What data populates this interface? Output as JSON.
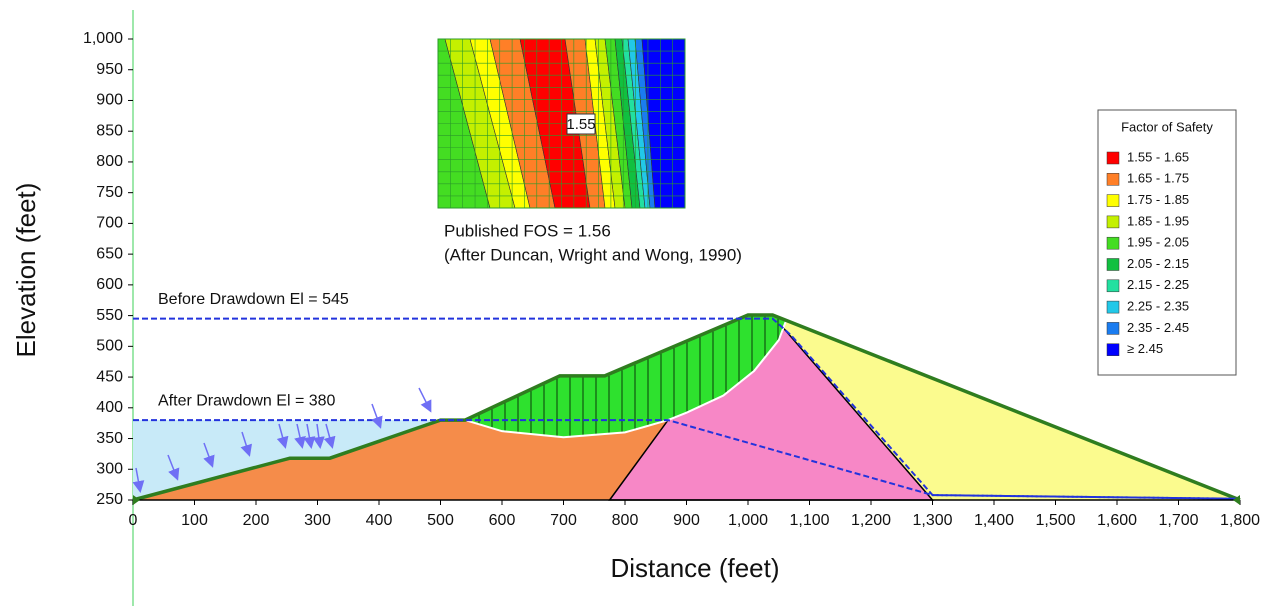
{
  "chart_data": {
    "type": "slope",
    "xlabel": "Distance (feet)",
    "ylabel": "Elevation (feet)",
    "xlim": [
      0,
      1800
    ],
    "ylim": [
      250,
      1000
    ],
    "xticks": [
      0,
      100,
      200,
      300,
      400,
      500,
      600,
      700,
      800,
      900,
      {
        "value": 1000,
        "label": "1,000"
      },
      {
        "value": 1100,
        "label": "1,100"
      },
      {
        "value": 1200,
        "label": "1,200"
      },
      {
        "value": 1300,
        "label": "1,300"
      },
      {
        "value": 1400,
        "label": "1,400"
      },
      {
        "value": 1500,
        "label": "1,500"
      },
      {
        "value": 1600,
        "label": "1,600"
      },
      {
        "value": 1700,
        "label": "1,700"
      },
      {
        "value": 1800,
        "label": "1,800"
      }
    ],
    "yticks": [
      250,
      300,
      350,
      400,
      450,
      500,
      550,
      600,
      650,
      700,
      750,
      800,
      850,
      900,
      950,
      {
        "value": 1000,
        "label": "1,000"
      }
    ],
    "regions": [
      {
        "color": "#c8eaf8",
        "x": [
          0,
          0,
          500,
          320,
          255
        ],
        "y": [
          250,
          380,
          380,
          318,
          318
        ]
      },
      {
        "color": "#f58c4a",
        "x": [
          0,
          255,
          320,
          500,
          540,
          870,
          775
        ],
        "y": [
          250,
          318,
          318,
          380,
          380,
          380,
          250
        ]
      },
      {
        "color": "#fbfb8e",
        "x": [
          1300,
          1060,
          1040,
          1800
        ],
        "y": [
          250,
          527,
          551,
          250
        ]
      },
      {
        "color": "#f787c6",
        "x": [
          775,
          870,
          1040,
          1060,
          1300
        ],
        "y": [
          250,
          380,
          550,
          527,
          250
        ]
      }
    ],
    "slip_mass": {
      "color": "#2ee12e",
      "x": [
        540,
        694,
        767,
        1000,
        1040,
        1062,
        1050,
        1010,
        960,
        900,
        870,
        800,
        700,
        600,
        540
      ],
      "y": [
        380,
        452,
        452,
        551,
        551,
        542,
        510,
        460,
        420,
        392,
        380,
        360,
        352,
        362,
        380
      ]
    },
    "slip_surface": {
      "color": "#ffffff",
      "x": [
        540,
        600,
        700,
        800,
        870,
        900,
        960,
        1010,
        1050,
        1062
      ],
      "y": [
        380,
        362,
        352,
        360,
        380,
        392,
        420,
        460,
        510,
        542
      ]
    },
    "surface": {
      "color": "#2f7d1f",
      "x": [
        0,
        255,
        320,
        500,
        540,
        694,
        767,
        1000,
        1040,
        1800
      ],
      "y": [
        250,
        318,
        318,
        380,
        380,
        452,
        452,
        551,
        551,
        250
      ]
    },
    "water_lines": [
      {
        "label": "Before Drawdown El = 545",
        "color": "#2233dd",
        "x": [
          0,
          1040,
          1070,
          1300,
          1800
        ],
        "y": [
          545,
          545,
          518,
          258,
          252
        ]
      },
      {
        "label": "After Drawdown El = 380",
        "color": "#2233dd",
        "x": [
          0,
          870,
          1300,
          1800
        ],
        "y": [
          380,
          380,
          258,
          252
        ]
      }
    ],
    "annotations": [
      "1.55",
      "Published FOS = 1.56",
      "(After Duncan, Wright and Wong, 1990)"
    ],
    "legend": {
      "title": "Factor of Safety",
      "items": [
        {
          "label": "1.55 - 1.65",
          "color": "#ff0000"
        },
        {
          "label": "1.65 - 1.75",
          "color": "#ff7f27"
        },
        {
          "label": "1.75 - 1.85",
          "color": "#ffff00"
        },
        {
          "label": "1.85 - 1.95",
          "color": "#c4f000"
        },
        {
          "label": "1.95 - 2.05",
          "color": "#44dd22"
        },
        {
          "label": "2.05 - 2.15",
          "color": "#11c040"
        },
        {
          "label": "2.15 - 2.25",
          "color": "#22e0a0"
        },
        {
          "label": "2.25 - 2.35",
          "color": "#22c8e8"
        },
        {
          "label": "2.35 - 2.45",
          "color": "#1a7cf0"
        },
        {
          "label": "≥ 2.45",
          "color": "#0000ff"
        }
      ]
    }
  }
}
